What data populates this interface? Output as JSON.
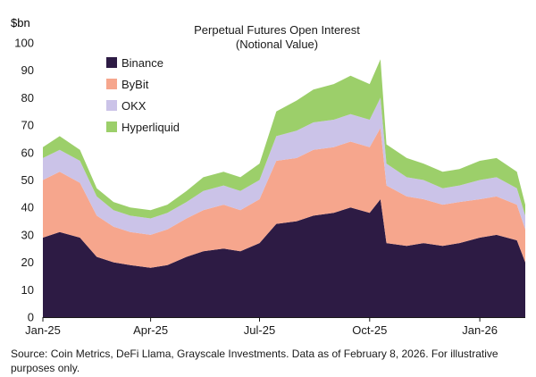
{
  "chart_data": {
    "type": "area",
    "stacked": true,
    "title_lines": [
      "Perpetual Futures Open Interest",
      "(Notional Value)"
    ],
    "y_unit_label": "$bn",
    "ylim": [
      0,
      100
    ],
    "y_ticks": [
      0,
      10,
      20,
      30,
      40,
      50,
      60,
      70,
      80,
      90,
      100
    ],
    "x_tick_labels": [
      "Jan-25",
      "Apr-25",
      "Jul-25",
      "Oct-25",
      "Jan-26"
    ],
    "x_tick_dates": [
      "2025-01-01",
      "2025-04-01",
      "2025-07-01",
      "2025-10-01",
      "2026-01-01"
    ],
    "x_range": [
      "2025-01-01",
      "2026-02-08"
    ],
    "legend_position": "top-left",
    "grid": false,
    "dates": [
      "2025-01-01",
      "2025-01-15",
      "2025-02-01",
      "2025-02-15",
      "2025-03-01",
      "2025-03-15",
      "2025-04-01",
      "2025-04-15",
      "2025-05-01",
      "2025-05-15",
      "2025-06-01",
      "2025-06-15",
      "2025-07-01",
      "2025-07-15",
      "2025-08-01",
      "2025-08-15",
      "2025-09-01",
      "2025-09-15",
      "2025-10-01",
      "2025-10-10",
      "2025-10-15",
      "2025-11-01",
      "2025-11-15",
      "2025-12-01",
      "2025-12-15",
      "2026-01-01",
      "2026-01-15",
      "2026-02-01",
      "2026-02-08"
    ],
    "series": [
      {
        "name": "Binance",
        "color": "#2d1b44",
        "values": [
          29,
          31,
          29,
          22,
          20,
          19,
          18,
          19,
          22,
          24,
          25,
          24,
          27,
          34,
          35,
          37,
          38,
          40,
          38,
          43,
          27,
          26,
          27,
          26,
          27,
          29,
          30,
          28,
          20
        ]
      },
      {
        "name": "ByBit",
        "color": "#f6a68d",
        "values": [
          21,
          22,
          20,
          15,
          13,
          12,
          12,
          13,
          14,
          15,
          16,
          15,
          16,
          23,
          23,
          24,
          24,
          24,
          24,
          26,
          21,
          18,
          16,
          15,
          15,
          14,
          14,
          13,
          12
        ]
      },
      {
        "name": "OKX",
        "color": "#cbc3e8",
        "values": [
          8,
          8,
          8,
          7,
          6,
          6,
          6,
          6,
          6,
          7,
          7,
          7,
          7,
          9,
          10,
          10,
          10,
          10,
          10,
          11,
          8,
          7,
          7,
          6,
          6,
          7,
          7,
          6,
          5
        ]
      },
      {
        "name": "Hyperliquid",
        "color": "#9ccf6a",
        "values": [
          4,
          5,
          4,
          3,
          3,
          3,
          3,
          3,
          4,
          5,
          5,
          5,
          6,
          9,
          11,
          12,
          13,
          14,
          13,
          14,
          7,
          7,
          6,
          6,
          6,
          7,
          7,
          6,
          4
        ]
      }
    ],
    "source_note": "Source: Coin Metrics, DeFi Llama, Grayscale Investments. Data as of February 8, 2026. For illustrative purposes only."
  }
}
